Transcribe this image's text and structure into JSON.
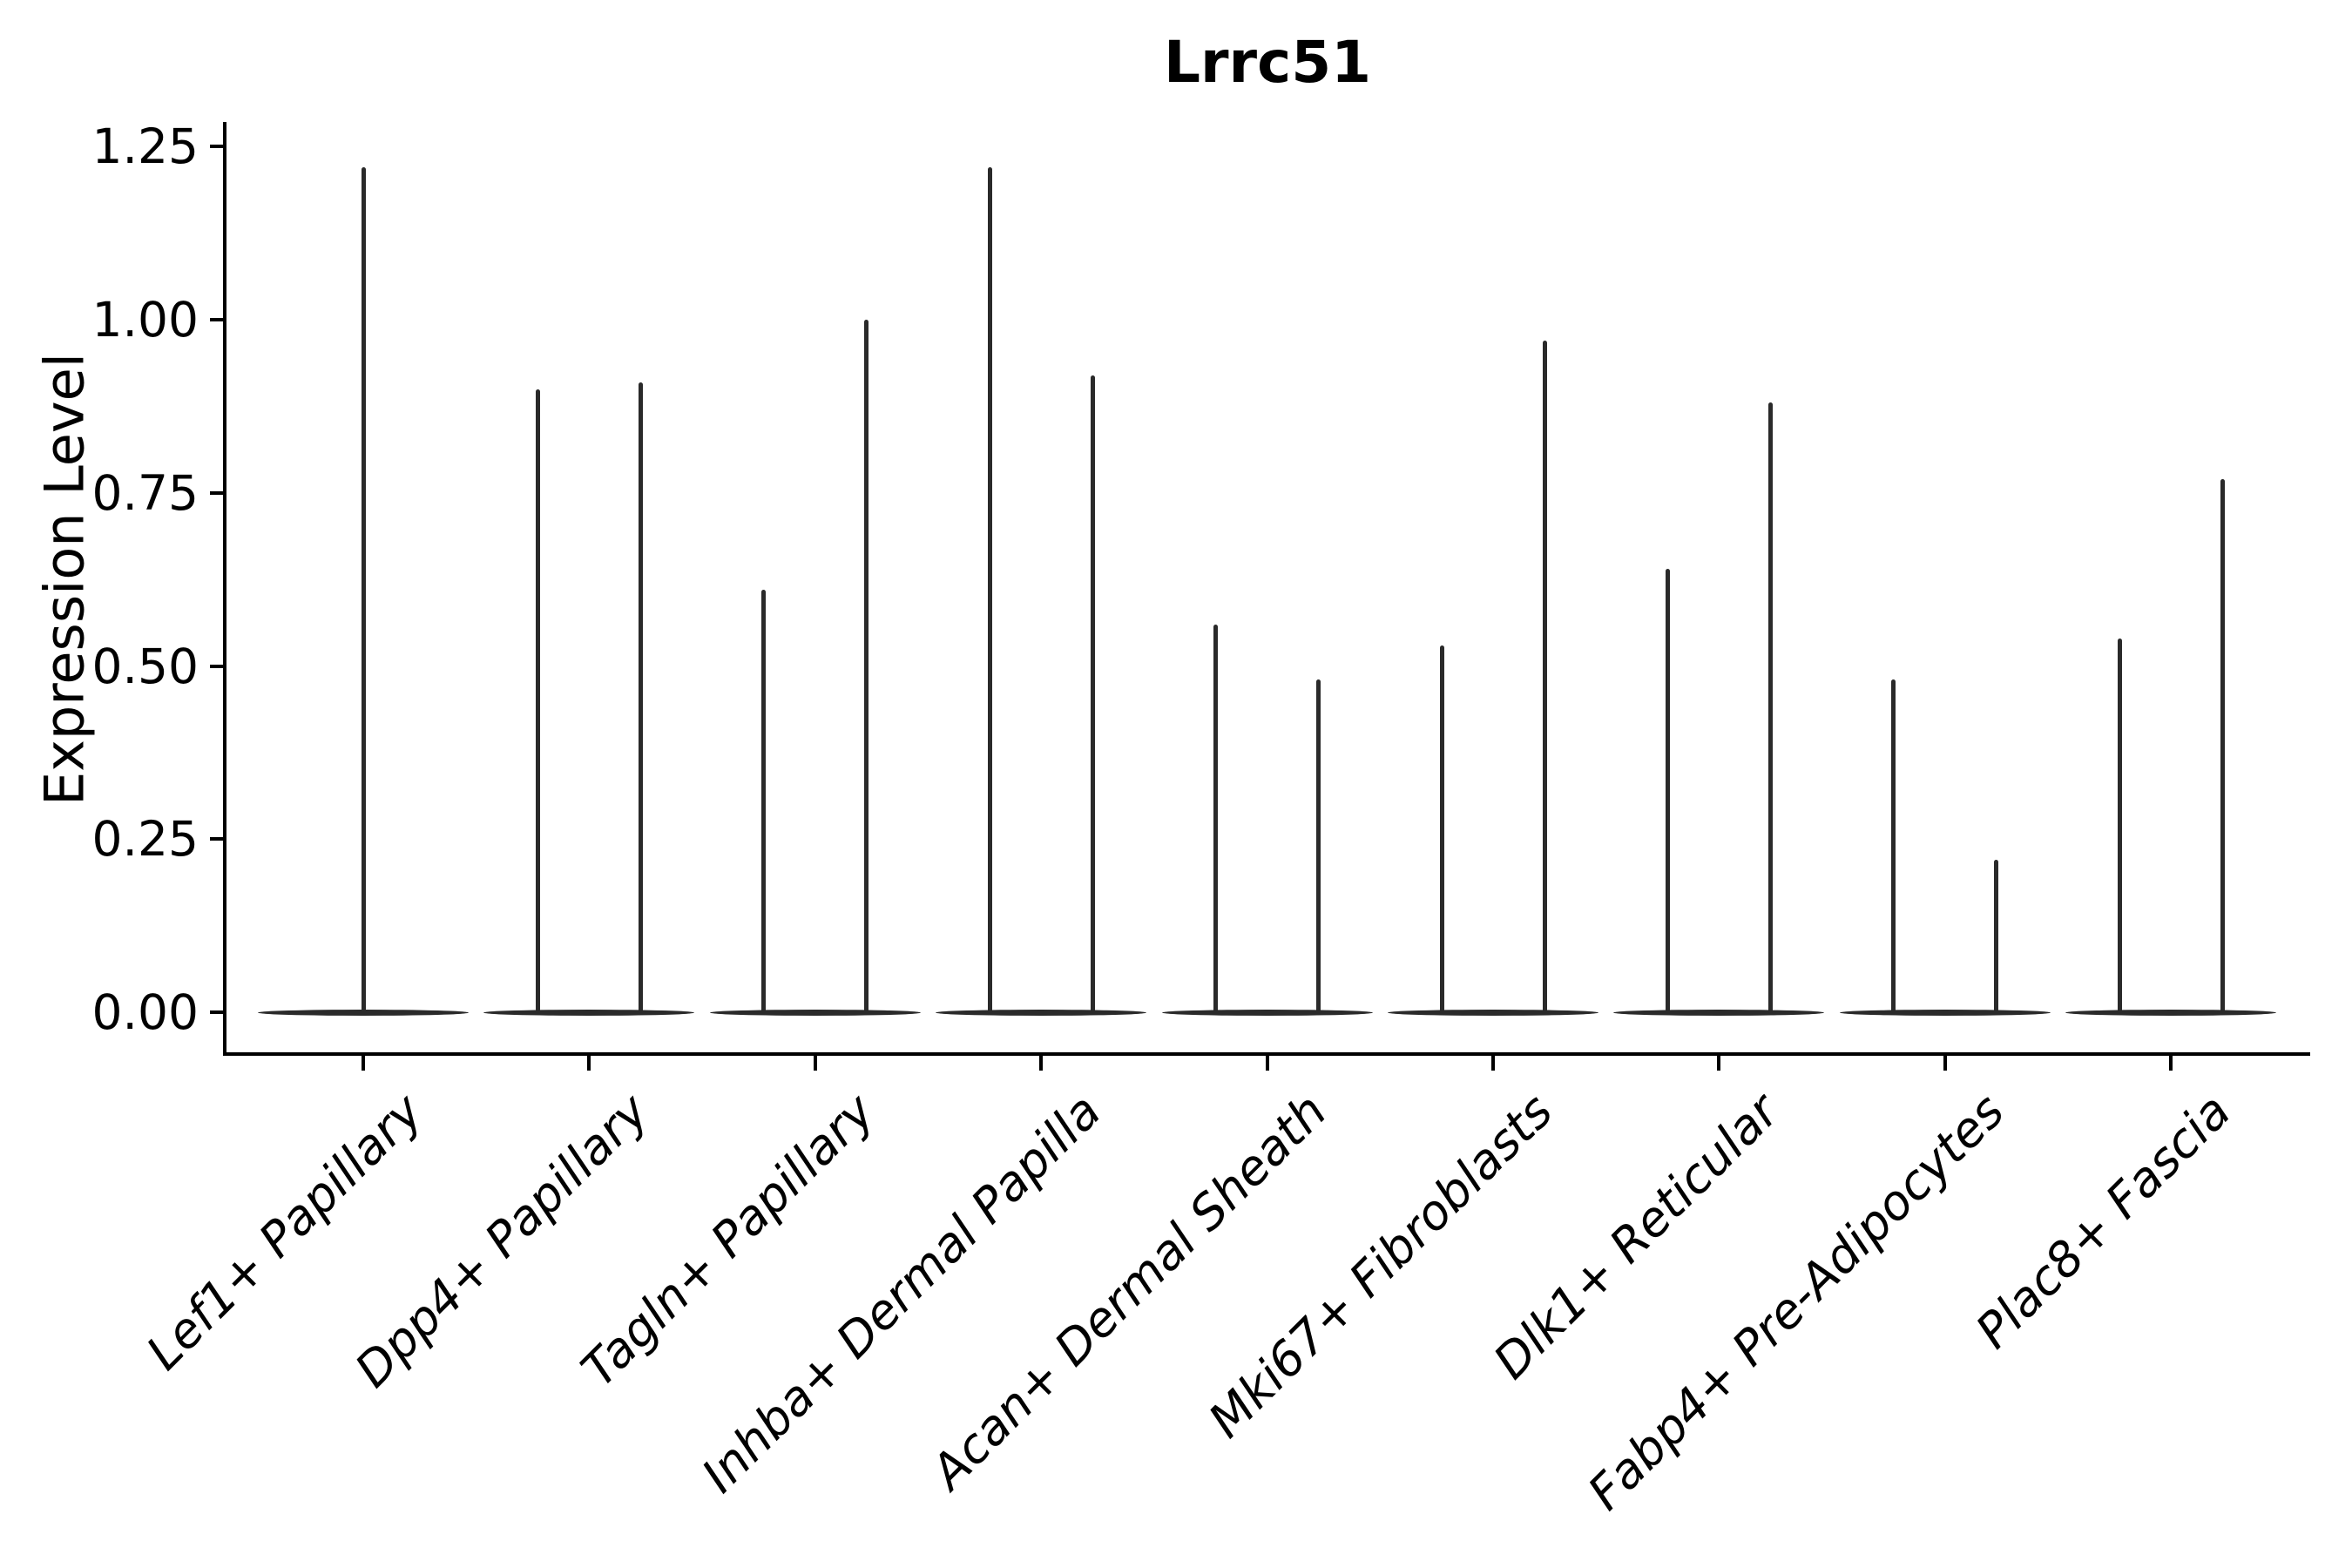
{
  "title": "Lrrc51",
  "y_axis": {
    "label": "Expression Level",
    "tick_labels": [
      "0.00",
      "0.25",
      "0.50",
      "0.75",
      "1.00",
      "1.25"
    ]
  },
  "x_axis": {
    "categories": [
      "Lef1+ Papillary",
      "Dpp4+ Papillary",
      "Tagln+ Papillary",
      "Inhba+ Dermal Papilla",
      "Acan+ Dermal Sheath",
      "Mki67+ Fibroblasts",
      "Dlk1+ Reticular",
      "Fabp4+ Pre-Adipocytes",
      "Plac8+ Fascia"
    ]
  },
  "chart_data": {
    "type": "violin",
    "title": "Lrrc51",
    "xlabel": "",
    "ylabel": "Expression Level",
    "categories": [
      "Lef1+ Papillary",
      "Dpp4+ Papillary",
      "Tagln+ Papillary",
      "Inhba+ Dermal Papilla",
      "Acan+ Dermal Sheath",
      "Mki67+ Fibroblasts",
      "Dlk1+ Reticular",
      "Fabp4+ Pre-Adipocytes",
      "Plac8+ Fascia"
    ],
    "yticks": [
      0,
      0.25,
      0.5,
      0.75,
      1.0,
      1.25
    ],
    "ylim": [
      -0.06,
      1.29
    ],
    "grid": false,
    "legend": "none",
    "description": "Width-collapsed violins: each category shows a flat density pancake at expression 0 plus one or two thin vertical density spikes reaching the maximum expression value",
    "violins": [
      {
        "category": "Lef1+ Papillary",
        "baseline": 0,
        "spikes": [
          {
            "pos": "center",
            "max": 1.22
          }
        ]
      },
      {
        "category": "Dpp4+ Papillary",
        "baseline": 0,
        "spikes": [
          {
            "pos": "left",
            "max": 0.9
          },
          {
            "pos": "right",
            "max": 0.91
          }
        ]
      },
      {
        "category": "Tagln+ Papillary",
        "baseline": 0,
        "spikes": [
          {
            "pos": "left",
            "max": 0.61
          },
          {
            "pos": "right",
            "max": 1.0
          }
        ]
      },
      {
        "category": "Inhba+ Dermal Papilla",
        "baseline": 0,
        "spikes": [
          {
            "pos": "left",
            "max": 1.22
          },
          {
            "pos": "right",
            "max": 0.92
          }
        ]
      },
      {
        "category": "Acan+ Dermal Sheath",
        "baseline": 0,
        "spikes": [
          {
            "pos": "left",
            "max": 0.56
          },
          {
            "pos": "right",
            "max": 0.48
          }
        ]
      },
      {
        "category": "Mki67+ Fibroblasts",
        "baseline": 0,
        "spikes": [
          {
            "pos": "left",
            "max": 0.53
          },
          {
            "pos": "right",
            "max": 0.97
          }
        ]
      },
      {
        "category": "Dlk1+ Reticular",
        "baseline": 0,
        "spikes": [
          {
            "pos": "left",
            "max": 0.64
          },
          {
            "pos": "right",
            "max": 0.88
          }
        ]
      },
      {
        "category": "Fabp4+ Pre-Adipocytes",
        "baseline": 0,
        "spikes": [
          {
            "pos": "left",
            "max": 0.48
          },
          {
            "pos": "right",
            "max": 0.22
          }
        ]
      },
      {
        "category": "Plac8+ Fascia",
        "baseline": 0,
        "spikes": [
          {
            "pos": "left",
            "max": 0.54
          },
          {
            "pos": "right",
            "max": 0.77
          }
        ]
      }
    ],
    "colors": {
      "violin": "#2a2a2a",
      "axis": "#000000",
      "text": "#000000",
      "background": "#ffffff"
    }
  }
}
